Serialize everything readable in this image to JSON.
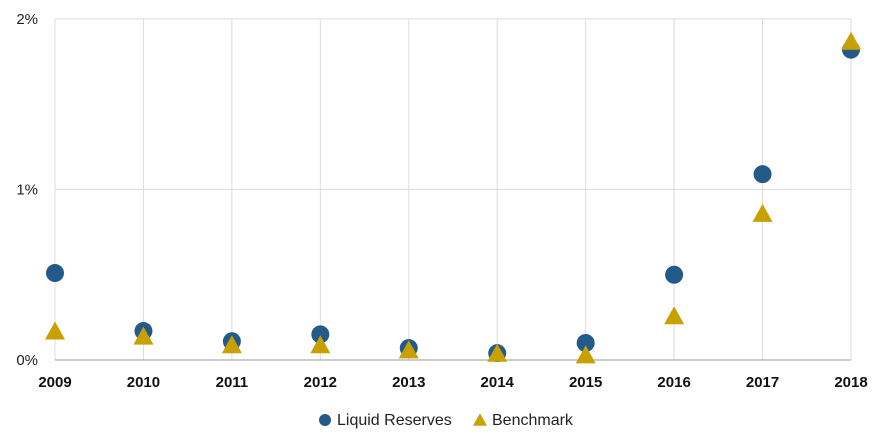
{
  "chart_data": {
    "type": "scatter",
    "title": "",
    "xlabel": "",
    "ylabel": "",
    "x": [
      "2009",
      "2010",
      "2011",
      "2012",
      "2013",
      "2014",
      "2015",
      "2016",
      "2017",
      "2018"
    ],
    "y_ticks": [
      {
        "value": 0,
        "label": "0%"
      },
      {
        "value": 1,
        "label": "1%"
      },
      {
        "value": 2,
        "label": "2%"
      }
    ],
    "ylim": [
      0,
      2
    ],
    "grid": true,
    "legend_position": "bottom-center",
    "series": [
      {
        "name": "Liquid Reserves",
        "marker": "circle",
        "color": "#245a8a",
        "values": [
          0.51,
          0.17,
          0.11,
          0.15,
          0.07,
          0.04,
          0.1,
          0.5,
          1.09,
          1.82
        ]
      },
      {
        "name": "Benchmark",
        "marker": "triangle",
        "color": "#c8a000",
        "values": [
          0.16,
          0.13,
          0.08,
          0.08,
          0.05,
          0.03,
          0.02,
          0.25,
          0.85,
          1.86
        ]
      }
    ]
  }
}
